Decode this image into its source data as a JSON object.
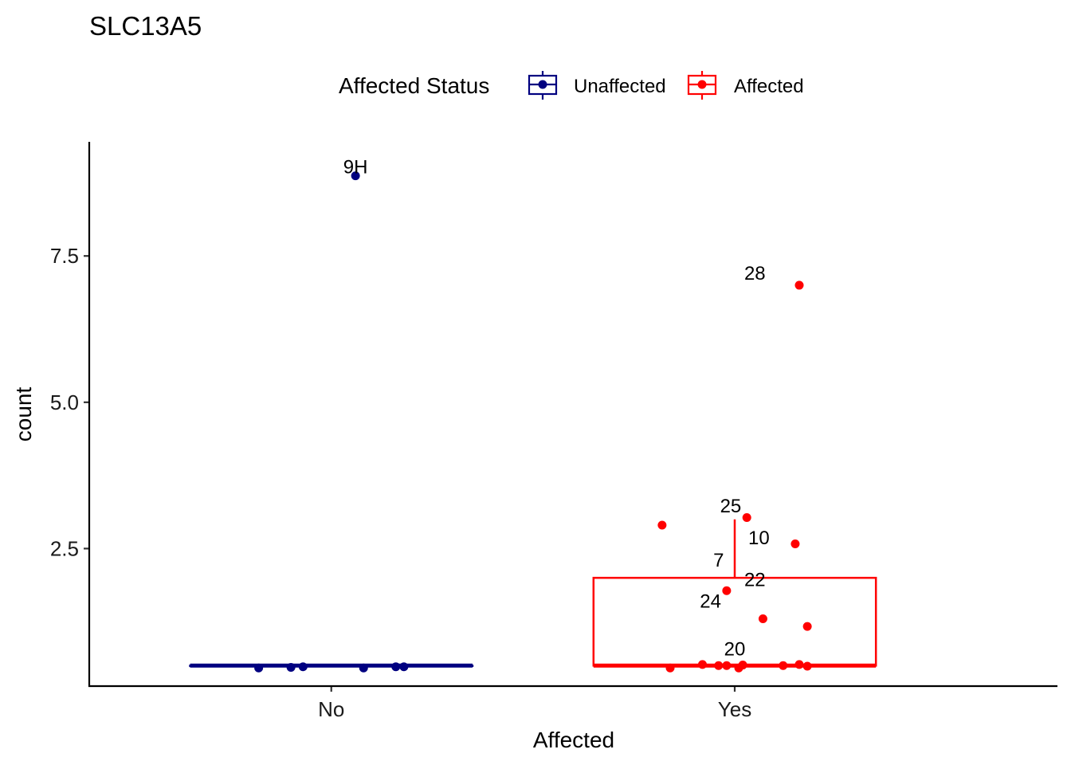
{
  "chart_data": {
    "type": "box",
    "title": "SLC13A5",
    "xlabel": "Affected",
    "ylabel": "count",
    "categories": [
      "No",
      "Yes"
    ],
    "ylim": [
      0.15,
      9.45
    ],
    "yticks": [
      2.5,
      5.0,
      7.5
    ],
    "ytick_labels": [
      "2.5",
      "5.0",
      "7.5"
    ],
    "grid": false,
    "legend": {
      "title": "Affected Status",
      "position": "top",
      "entries": [
        {
          "label": "Unaffected",
          "color": "#000080"
        },
        {
          "label": "Affected",
          "color": "#ff0000"
        }
      ]
    },
    "series": [
      {
        "name": "Unaffected",
        "category": "No",
        "color": "#000080",
        "box": {
          "q1": 0.5,
          "median": 0.5,
          "q3": 0.5,
          "whisker_low": 0.5,
          "whisker_high": 0.5
        },
        "points": [
          {
            "x": -0.18,
            "y": 0.46
          },
          {
            "x": -0.1,
            "y": 0.47
          },
          {
            "x": -0.07,
            "y": 0.48
          },
          {
            "x": 0.08,
            "y": 0.46
          },
          {
            "x": 0.16,
            "y": 0.48
          },
          {
            "x": 0.18,
            "y": 0.48
          },
          {
            "x": 0.06,
            "y": 8.87
          }
        ],
        "labels": [
          {
            "text": "9H",
            "x": 0.06,
            "y": 9.02
          }
        ]
      },
      {
        "name": "Affected",
        "category": "Yes",
        "color": "#ff0000",
        "box": {
          "q1": 0.5,
          "median": 0.5,
          "q3": 2.0,
          "whisker_low": 0.5,
          "whisker_high": 3.0
        },
        "points": [
          {
            "x": 0.16,
            "y": 7.0
          },
          {
            "x": 0.03,
            "y": 3.03
          },
          {
            "x": -0.18,
            "y": 2.9
          },
          {
            "x": 0.15,
            "y": 2.58
          },
          {
            "x": -0.02,
            "y": 1.78
          },
          {
            "x": 0.07,
            "y": 1.3
          },
          {
            "x": 0.18,
            "y": 1.17
          },
          {
            "x": -0.16,
            "y": 0.46
          },
          {
            "x": -0.08,
            "y": 0.52
          },
          {
            "x": -0.04,
            "y": 0.5
          },
          {
            "x": -0.02,
            "y": 0.5
          },
          {
            "x": 0.01,
            "y": 0.46
          },
          {
            "x": 0.02,
            "y": 0.51
          },
          {
            "x": 0.12,
            "y": 0.5
          },
          {
            "x": 0.16,
            "y": 0.52
          },
          {
            "x": 0.18,
            "y": 0.49
          }
        ],
        "labels": [
          {
            "text": "28",
            "x": 0.05,
            "y": 7.2
          },
          {
            "text": "25",
            "x": -0.01,
            "y": 3.23
          },
          {
            "text": "10",
            "x": 0.06,
            "y": 2.68
          },
          {
            "text": "7",
            "x": -0.04,
            "y": 2.3
          },
          {
            "text": "22",
            "x": 0.05,
            "y": 1.97
          },
          {
            "text": "24",
            "x": -0.06,
            "y": 1.6
          },
          {
            "text": "20",
            "x": 0.0,
            "y": 0.78
          }
        ]
      }
    ]
  }
}
